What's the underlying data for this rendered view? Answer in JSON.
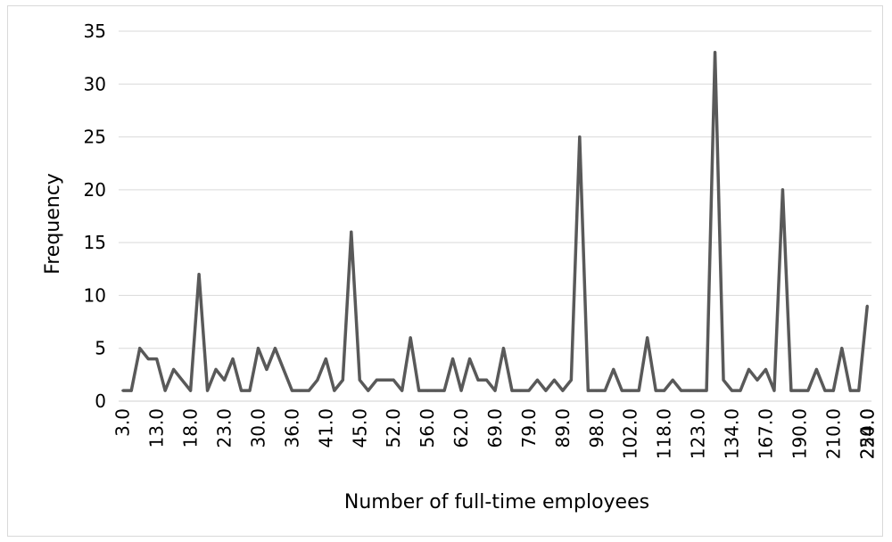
{
  "chart_data": {
    "type": "line",
    "title": "",
    "xlabel": "Number of full-time employees",
    "ylabel": "Frequency",
    "ylim": [
      0,
      35
    ],
    "y_ticks": [
      0,
      5,
      10,
      15,
      20,
      25,
      30,
      35
    ],
    "grid": true,
    "legend": "none",
    "x_tick_labels": [
      "3.0",
      "13.0",
      "18.0",
      "23.0",
      "30.0",
      "36.0",
      "41.0",
      "45.0",
      "52.0",
      "56.0",
      "62.0",
      "69.0",
      "79.0",
      "89.0",
      "98.0",
      "102.0",
      "118.0",
      "123.0",
      "134.0",
      "167.0",
      "190.0",
      "210.0",
      "224.0",
      "250.0"
    ],
    "series": [
      {
        "color": "#595959",
        "values": [
          1,
          1,
          5,
          4,
          4,
          1,
          3,
          2,
          1,
          12,
          1,
          3,
          2,
          4,
          1,
          1,
          5,
          3,
          5,
          3,
          1,
          1,
          1,
          2,
          4,
          1,
          2,
          16,
          2,
          1,
          2,
          2,
          2,
          1,
          6,
          1,
          1,
          1,
          1,
          4,
          1,
          4,
          2,
          2,
          1,
          5,
          1,
          1,
          1,
          2,
          1,
          2,
          1,
          2,
          25,
          1,
          1,
          1,
          3,
          1,
          1,
          1,
          6,
          1,
          1,
          2,
          1,
          1,
          1,
          1,
          33,
          2,
          1,
          1,
          3,
          2,
          3,
          1,
          20,
          1,
          1,
          1,
          3,
          1,
          1,
          5,
          1,
          1,
          9
        ]
      }
    ]
  }
}
